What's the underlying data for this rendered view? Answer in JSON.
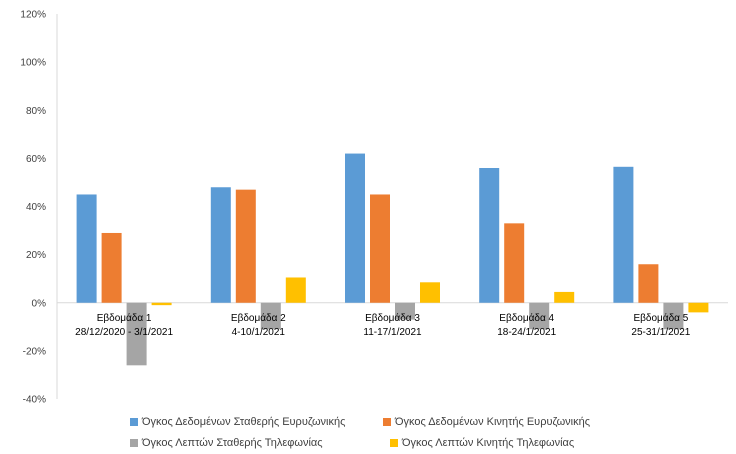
{
  "chart_data": {
    "type": "bar",
    "categories": [
      [
        "Εβδομάδα 1",
        "28/12/2020 - 3/1/2021"
      ],
      [
        "Εβδομάδα 2",
        "4-10/1/2021"
      ],
      [
        "Εβδομάδα 3",
        "11-17/1/2021"
      ],
      [
        "Εβδομάδα 4",
        "18-24/1/2021"
      ],
      [
        "Εβδομάδα 5",
        "25-31/1/2021"
      ]
    ],
    "series": [
      {
        "name": "Όγκος Δεδομένων Σταθερής Ευρυζωνικής",
        "color": "#5b9bd5",
        "values": [
          45,
          48,
          62,
          56,
          56.5
        ]
      },
      {
        "name": "Όγκος Δεδομένων Κινητής Ευρυζωνικής",
        "color": "#ed7d31",
        "values": [
          29,
          47,
          45,
          33,
          16
        ]
      },
      {
        "name": "Όγκος Λεπτών Σταθερής Τηλεφωνίας",
        "color": "#a5a5a5",
        "values": [
          -26,
          -11,
          -7,
          -11,
          -11
        ]
      },
      {
        "name": "Όγκος Λεπτών Κινητής Τηλεφωνίας",
        "color": "#ffc000",
        "values": [
          -1,
          10.5,
          8.5,
          4.5,
          -4
        ]
      }
    ],
    "yticks": [
      "120%",
      "100%",
      "80%",
      "60%",
      "40%",
      "20%",
      "0%",
      "-20%",
      "-40%"
    ],
    "ylim": [
      -40,
      120
    ],
    "title": "",
    "xlabel": "",
    "ylabel": "",
    "grid": false,
    "legend_position": "bottom"
  }
}
